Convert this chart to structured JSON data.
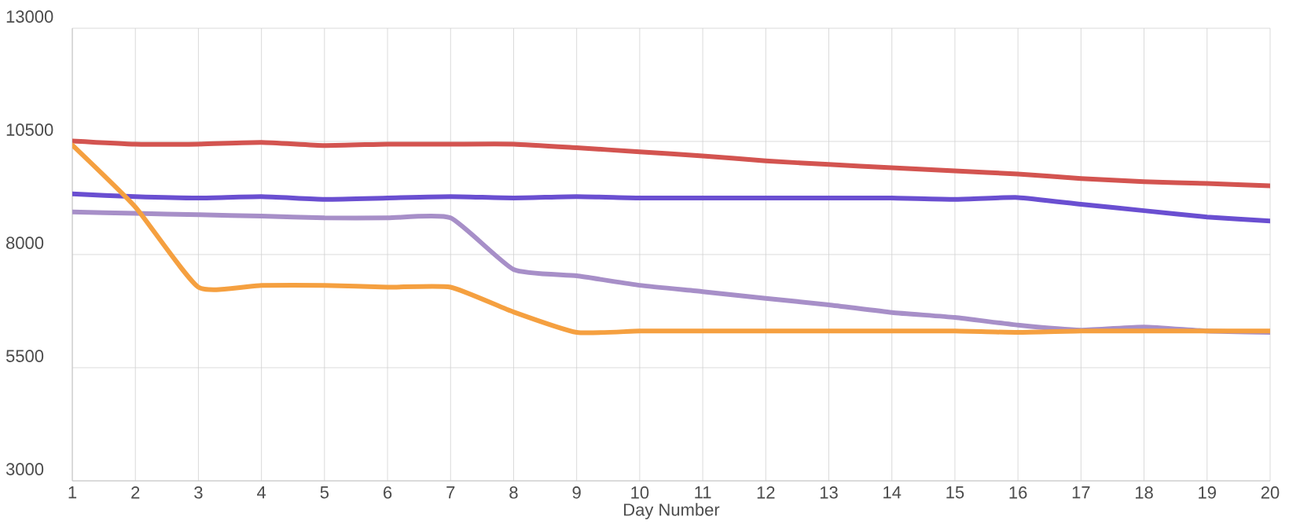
{
  "chart_data": {
    "type": "line",
    "xlabel": "Day Number",
    "x": [
      1,
      2,
      3,
      4,
      5,
      6,
      7,
      8,
      9,
      10,
      11,
      12,
      13,
      14,
      15,
      16,
      17,
      18,
      19,
      20
    ],
    "series": [
      {
        "color": "#d35450",
        "values": [
          10510,
          10440,
          10440,
          10480,
          10410,
          10440,
          10440,
          10440,
          10360,
          10270,
          10180,
          10070,
          9990,
          9920,
          9850,
          9780,
          9680,
          9610,
          9570,
          9520
        ]
      },
      {
        "color": "#6a4fd1",
        "values": [
          9340,
          9280,
          9250,
          9280,
          9220,
          9250,
          9280,
          9250,
          9280,
          9250,
          9250,
          9250,
          9250,
          9250,
          9220,
          9260,
          9110,
          8970,
          8830,
          8740
        ]
      },
      {
        "color": "#a78fc8",
        "values": [
          8940,
          8910,
          8880,
          8850,
          8810,
          8810,
          8810,
          7670,
          7530,
          7320,
          7180,
          7030,
          6890,
          6720,
          6610,
          6440,
          6330,
          6400,
          6310,
          6280
        ]
      },
      {
        "color": "#f5a040",
        "values": [
          10420,
          9050,
          7280,
          7320,
          7320,
          7280,
          7280,
          6730,
          6280,
          6310,
          6310,
          6310,
          6310,
          6310,
          6310,
          6280,
          6310,
          6310,
          6310,
          6310
        ]
      }
    ],
    "xlim": [
      1,
      20
    ],
    "ylim": [
      3000,
      13000
    ],
    "xticks": [
      1,
      2,
      3,
      4,
      5,
      6,
      7,
      8,
      9,
      10,
      11,
      12,
      13,
      14,
      15,
      16,
      17,
      18,
      19,
      20
    ],
    "yticks": [
      3000,
      5500,
      8000,
      10500,
      13000
    ],
    "grid": true,
    "marker": "none",
    "line_style": "solid"
  }
}
